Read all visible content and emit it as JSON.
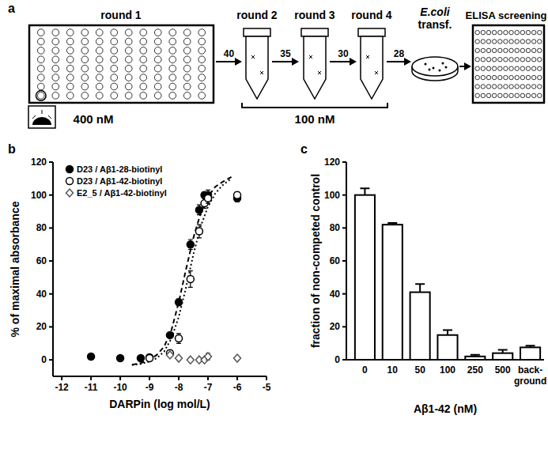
{
  "diagram": {
    "label": "a",
    "plates": [
      {
        "label": "round 1"
      },
      {
        "label": "ELISA screening"
      }
    ],
    "tubes": [
      {
        "label": "round 2"
      },
      {
        "label": "round 3"
      },
      {
        "label": "round 4"
      }
    ],
    "dish": {
      "label": "E.coli",
      "sublabel": "transf."
    },
    "arrows": [
      40,
      35,
      30,
      28
    ],
    "concentrations": [
      {
        "label": "400 nM"
      },
      {
        "label": "100 nM"
      }
    ]
  },
  "chart_data": [
    {
      "type": "scatter",
      "title": "b",
      "x_label": "DARPin (log mol/L)",
      "y_label": "% of maximal absorbance",
      "xlim": [
        -12.3,
        -5
      ],
      "ylim": [
        -10,
        120
      ],
      "xticks": [
        -12,
        -11,
        -10,
        -9,
        -8,
        -7,
        -6,
        -5
      ],
      "yticks": [
        0,
        20,
        40,
        60,
        80,
        100,
        120
      ],
      "legend": "top-left",
      "series": [
        {
          "name": "D23 / Aβ1-28-biotinyl",
          "color": "#000000",
          "marker": "circle",
          "x": [
            -11,
            -10,
            -9.3,
            -9,
            -8.3,
            -8,
            -7.6,
            -7.3,
            -7.12,
            -7,
            -6
          ],
          "values": [
            2,
            1,
            1,
            1.5,
            15,
            35,
            70,
            91,
            100,
            100,
            98
          ],
          "errors": [
            0.5,
            0.5,
            0.5,
            0.5,
            1,
            2,
            3,
            3,
            2,
            3,
            2
          ]
        },
        {
          "name": "D23 / Aβ1-42-biotinyl",
          "color": "#000000",
          "marker": "circle-open",
          "x": [
            -9,
            -8.3,
            -8,
            -7.6,
            -7.3,
            -7.12,
            -7,
            -6
          ],
          "values": [
            1,
            4,
            13,
            49,
            78,
            95,
            98,
            100
          ],
          "errors": [
            0.5,
            2,
            3,
            5,
            4,
            3,
            3,
            2
          ]
        },
        {
          "name": "E2_5 / Aβ1-42-biotinyl",
          "color": "#555555",
          "marker": "diamond-open",
          "x": [
            -8.3,
            -8,
            -7.6,
            -7.3,
            -7.12,
            -7,
            -6
          ],
          "values": [
            3,
            1,
            0,
            0,
            0,
            2,
            1
          ],
          "errors": [
            1,
            1,
            1,
            1,
            1,
            2,
            1
          ]
        },
        {
          "type": "line",
          "line_style": "dashed",
          "color": "#000000",
          "x": [
            -9.6,
            -9.3,
            -9,
            -8.75,
            -8.5,
            -8.25,
            -8,
            -7.75,
            -7.5,
            -7.25,
            -7,
            -6.75,
            -6.5,
            -6.2
          ],
          "values": [
            -3,
            -2,
            0,
            3,
            8,
            18,
            35,
            55,
            74,
            89,
            99,
            105,
            108,
            111
          ]
        },
        {
          "type": "line",
          "line_style": "dotted",
          "color": "#000000",
          "x": [
            -9.6,
            -9.3,
            -9,
            -8.75,
            -8.5,
            -8.25,
            -8,
            -7.75,
            -7.5,
            -7.25,
            -7,
            -6.75,
            -6.5,
            -6.2
          ],
          "values": [
            -3,
            -2.5,
            -1,
            1,
            5,
            13,
            26,
            44,
            64,
            81,
            93,
            101,
            106,
            110
          ]
        }
      ]
    },
    {
      "type": "bar",
      "title": "c",
      "x_label": "Aβ1-42 (nM)",
      "y_label": "fraction of non-competed control",
      "categories": [
        "0",
        "10",
        "50",
        "100",
        "250",
        "500",
        "back-ground"
      ],
      "values": [
        100,
        82,
        41,
        15,
        2,
        4,
        7.5
      ],
      "errors": [
        4,
        1,
        5,
        3,
        1,
        2,
        1
      ],
      "color": "#ffffff",
      "ylim": [
        0,
        120
      ],
      "yticks": [
        0,
        20,
        40,
        60,
        80,
        100,
        120
      ]
    }
  ]
}
